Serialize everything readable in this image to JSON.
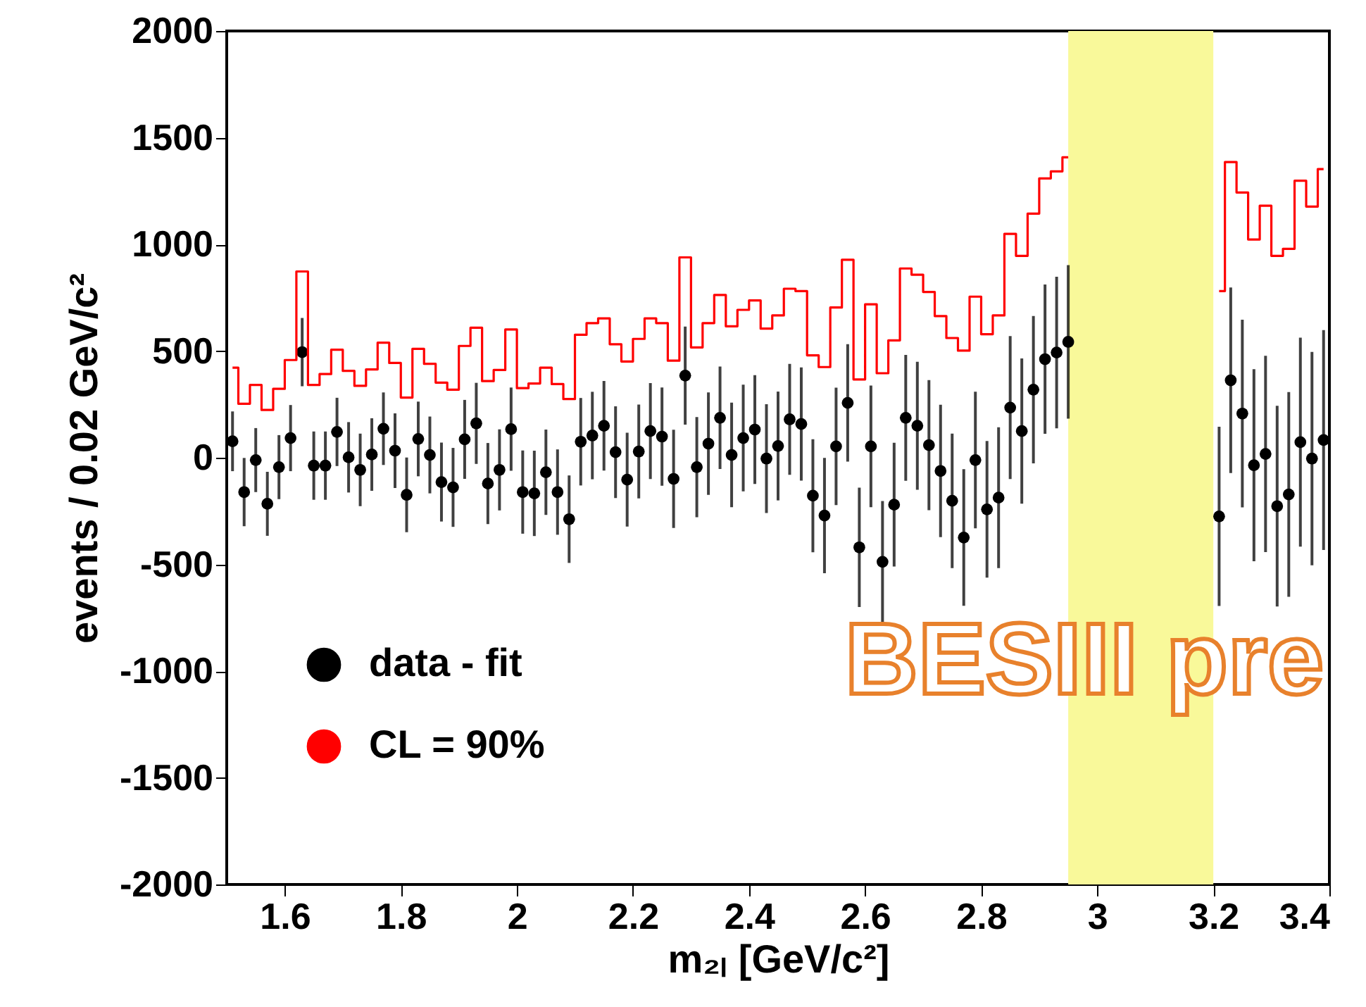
{
  "chart_data": {
    "type": "scatter",
    "xlabel": "m₂ₗ [GeV/c²]",
    "ylabel": "events / 0.02 GeV/c²",
    "annotations": [
      "BESIII pre"
    ],
    "x": [
      1.51,
      1.53,
      1.55,
      1.57,
      1.59,
      1.61,
      1.63,
      1.65,
      1.67,
      1.69,
      1.71,
      1.73,
      1.75,
      1.77,
      1.79,
      1.81,
      1.83,
      1.85,
      1.87,
      1.89,
      1.91,
      1.93,
      1.95,
      1.97,
      1.99,
      2.01,
      2.03,
      2.05,
      2.07,
      2.09,
      2.11,
      2.13,
      2.15,
      2.17,
      2.19,
      2.21,
      2.23,
      2.25,
      2.27,
      2.29,
      2.31,
      2.33,
      2.35,
      2.37,
      2.39,
      2.41,
      2.43,
      2.45,
      2.47,
      2.49,
      2.51,
      2.53,
      2.55,
      2.57,
      2.59,
      2.61,
      2.63,
      2.65,
      2.67,
      2.69,
      2.71,
      2.73,
      2.75,
      2.77,
      2.79,
      2.81,
      2.83,
      2.85,
      2.87,
      2.89,
      2.91,
      2.93,
      2.95,
      2.97,
      2.99,
      3.01,
      3.03,
      3.05,
      3.07,
      3.09,
      3.11,
      3.13,
      3.15,
      3.17,
      3.19,
      3.21,
      3.23,
      3.25,
      3.27,
      3.29,
      3.31,
      3.33,
      3.35,
      3.37,
      3.39
    ],
    "series": [
      {
        "name": "data - fit",
        "type": "scatter",
        "marker": "circle",
        "color": "#000000",
        "values": [
          77,
          -161,
          -11,
          -216,
          -44,
          92,
          495,
          -37,
          -37,
          121,
          2,
          -57,
          15,
          136,
          33,
          -174,
          88,
          13,
          -114,
          -139,
          86,
          161,
          -121,
          -57,
          134,
          -161,
          -167,
          -68,
          -161,
          -288,
          75,
          104,
          150,
          26,
          -103,
          29,
          125,
          99,
          -99,
          385,
          -44,
          66,
          187,
          13,
          92,
          132,
          -4,
          55,
          180,
          158,
          -178,
          -271,
          53,
          257,
          -420,
          53,
          -488,
          -220,
          187,
          150,
          59,
          -62,
          -202,
          -374,
          -11,
          -242,
          -187,
          235,
          125,
          319,
          462,
          493,
          543,
          null,
          null,
          null,
          null,
          null,
          null,
          null,
          null,
          null,
          null,
          null,
          null,
          -275,
          363,
          207,
          -35,
          18,
          -227,
          -172,
          73,
          -4,
          83
        ],
        "errors": [
          140,
          160,
          150,
          150,
          150,
          155,
          160,
          160,
          160,
          160,
          165,
          170,
          170,
          170,
          175,
          175,
          175,
          180,
          185,
          185,
          185,
          190,
          190,
          190,
          195,
          195,
          200,
          200,
          200,
          205,
          205,
          205,
          210,
          215,
          220,
          220,
          225,
          230,
          230,
          230,
          235,
          240,
          240,
          245,
          250,
          255,
          255,
          255,
          260,
          265,
          265,
          270,
          275,
          275,
          280,
          285,
          285,
          290,
          295,
          300,
          305,
          310,
          315,
          320,
          320,
          320,
          330,
          335,
          340,
          345,
          350,
          355,
          360,
          null,
          null,
          null,
          null,
          null,
          null,
          null,
          null,
          null,
          null,
          null,
          null,
          420,
          435,
          440,
          450,
          460,
          470,
          480,
          490,
          500,
          515
        ]
      },
      {
        "name": "CL = 90%",
        "type": "step",
        "color": "#ff0000",
        "values": [
          422,
          253,
          341,
          224,
          323,
          458,
          873,
          341,
          392,
          506,
          407,
          337,
          414,
          539,
          444,
          282,
          510,
          440,
          352,
          319,
          524,
          609,
          359,
          411,
          601,
          326,
          348,
          422,
          345,
          275,
          576,
          631,
          653,
          532,
          451,
          557,
          653,
          631,
          455,
          939,
          517,
          631,
          763,
          616,
          693,
          737,
          605,
          667,
          792,
          781,
          480,
          425,
          704,
          928,
          367,
          719,
          396,
          550,
          887,
          858,
          777,
          664,
          561,
          502,
          755,
          579,
          667,
          1049,
          946,
          1144,
          1309,
          1342,
          1408,
          null,
          null,
          null,
          null,
          null,
          null,
          null,
          null,
          null,
          null,
          null,
          null,
          781,
          1386,
          1243,
          1023,
          1181,
          946,
          979,
          1298,
          1177,
          1353
        ]
      }
    ],
    "bands": [
      {
        "axis": "x",
        "from": 2.95,
        "to": 3.2,
        "color": "#f9f99a"
      }
    ],
    "xlim": [
      1.5,
      3.4
    ],
    "xticks": [
      1.6,
      1.8,
      2,
      2.2,
      2.4,
      2.6,
      2.8,
      3,
      3.2,
      3.4
    ],
    "ylim": [
      -2000,
      2000
    ],
    "yticks": [
      -2000,
      -1500,
      -1000,
      -500,
      0,
      500,
      1000,
      1500,
      2000
    ],
    "legend": "bottom left"
  }
}
